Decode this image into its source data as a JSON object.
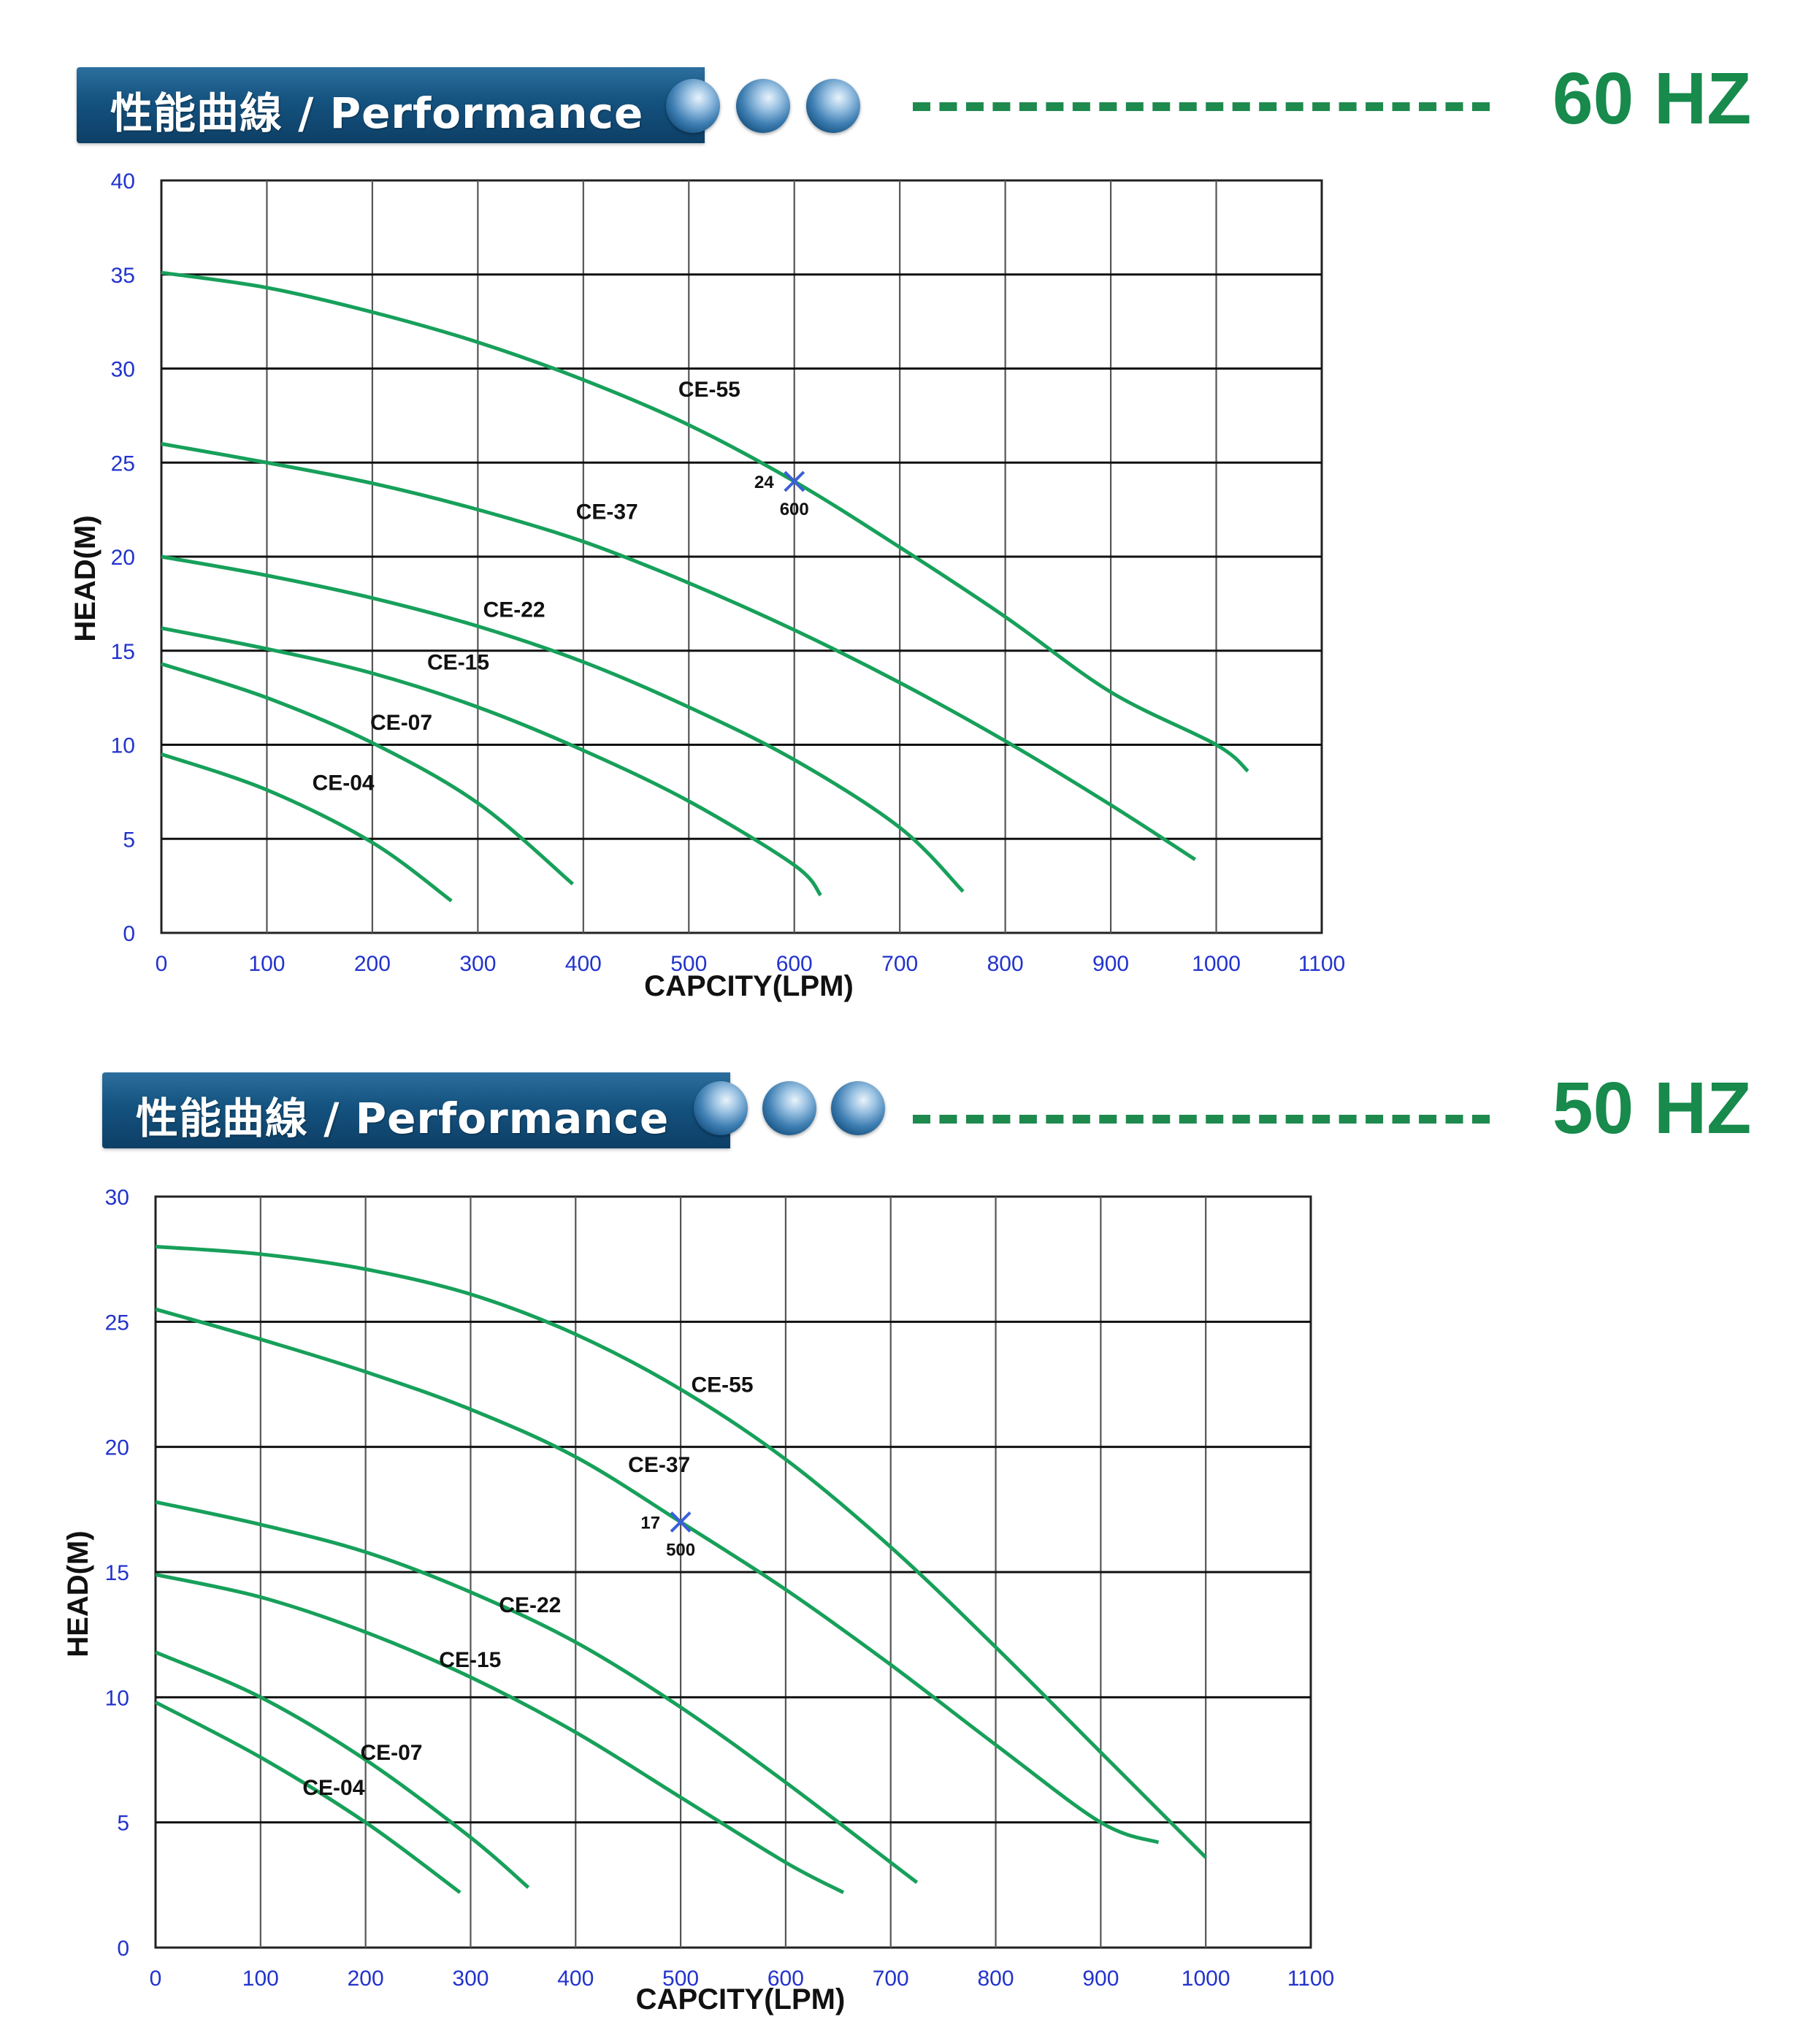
{
  "sections": [
    {
      "banner_label": "性能曲線 / Performance",
      "frequency": "60 HZ"
    },
    {
      "banner_label": "性能曲線 / Performance",
      "frequency": "50 HZ"
    }
  ],
  "chart_data": [
    {
      "type": "line",
      "title": "",
      "xlabel": "CAPCITY(LPM)",
      "ylabel": "HEAD(M)",
      "xlim": [
        0,
        1100
      ],
      "ylim": [
        0,
        40
      ],
      "xticks": [
        0,
        100,
        200,
        300,
        400,
        500,
        600,
        700,
        800,
        900,
        1000,
        1100
      ],
      "yticks": [
        0,
        5,
        10,
        15,
        20,
        25,
        30,
        35,
        40
      ],
      "grid": true,
      "series": [
        {
          "name": "CE-55",
          "color": "#17a05a",
          "label_at": [
            490,
            28.5
          ],
          "points": [
            [
              0,
              35.1
            ],
            [
              100,
              34.3
            ],
            [
              200,
              33.0
            ],
            [
              300,
              31.4
            ],
            [
              400,
              29.4
            ],
            [
              500,
              27.0
            ],
            [
              600,
              24.0
            ],
            [
              700,
              20.5
            ],
            [
              800,
              16.8
            ],
            [
              900,
              12.8
            ],
            [
              1000,
              10.0
            ],
            [
              1030,
              8.6
            ]
          ]
        },
        {
          "name": "CE-37",
          "color": "#17a05a",
          "label_at": [
            393,
            22.0
          ],
          "points": [
            [
              0,
              26.0
            ],
            [
              100,
              25.0
            ],
            [
              200,
              23.9
            ],
            [
              300,
              22.5
            ],
            [
              400,
              20.8
            ],
            [
              500,
              18.6
            ],
            [
              600,
              16.1
            ],
            [
              700,
              13.3
            ],
            [
              800,
              10.2
            ],
            [
              900,
              6.8
            ],
            [
              980,
              3.9
            ]
          ]
        },
        {
          "name": "CE-22",
          "color": "#17a05a",
          "label_at": [
            305,
            16.8
          ],
          "points": [
            [
              0,
              20.0
            ],
            [
              100,
              19.0
            ],
            [
              200,
              17.8
            ],
            [
              300,
              16.3
            ],
            [
              400,
              14.4
            ],
            [
              500,
              12.0
            ],
            [
              600,
              9.2
            ],
            [
              700,
              5.6
            ],
            [
              760,
              2.2
            ]
          ]
        },
        {
          "name": "CE-15",
          "color": "#17a05a",
          "label_at": [
            252,
            14.0
          ],
          "points": [
            [
              0,
              16.2
            ],
            [
              100,
              15.1
            ],
            [
              200,
              13.8
            ],
            [
              300,
              12.0
            ],
            [
              400,
              9.7
            ],
            [
              500,
              7.0
            ],
            [
              600,
              3.6
            ],
            [
              625,
              2.0
            ]
          ]
        },
        {
          "name": "CE-07",
          "color": "#17a05a",
          "label_at": [
            198,
            10.8
          ],
          "points": [
            [
              0,
              14.3
            ],
            [
              100,
              12.5
            ],
            [
              200,
              10.1
            ],
            [
              300,
              6.9
            ],
            [
              390,
              2.6
            ]
          ]
        },
        {
          "name": "CE-04",
          "color": "#17a05a",
          "label_at": [
            143,
            7.6
          ],
          "points": [
            [
              0,
              9.5
            ],
            [
              100,
              7.6
            ],
            [
              200,
              4.8
            ],
            [
              275,
              1.7
            ]
          ]
        }
      ],
      "annotations": [
        {
          "x": 600,
          "y": 24,
          "marker": "x",
          "color": "#3a5fd9",
          "text_y": "24",
          "text_x": "600"
        }
      ]
    },
    {
      "type": "line",
      "title": "",
      "xlabel": "CAPCITY(LPM)",
      "ylabel": "HEAD(M)",
      "xlim": [
        0,
        1100
      ],
      "ylim": [
        0,
        30
      ],
      "xticks": [
        0,
        100,
        200,
        300,
        400,
        500,
        600,
        700,
        800,
        900,
        1000,
        1100
      ],
      "yticks": [
        0,
        5,
        10,
        15,
        20,
        25,
        30
      ],
      "grid": true,
      "series": [
        {
          "name": "CE-55",
          "color": "#17a05a",
          "label_at": [
            510,
            22.2
          ],
          "points": [
            [
              0,
              28.0
            ],
            [
              100,
              27.7
            ],
            [
              200,
              27.1
            ],
            [
              300,
              26.1
            ],
            [
              400,
              24.5
            ],
            [
              500,
              22.3
            ],
            [
              600,
              19.5
            ],
            [
              700,
              16.0
            ],
            [
              800,
              12.0
            ],
            [
              900,
              7.8
            ],
            [
              1000,
              3.6
            ]
          ]
        },
        {
          "name": "CE-37",
          "color": "#17a05a",
          "label_at": [
            450,
            19.0
          ],
          "points": [
            [
              0,
              25.5
            ],
            [
              100,
              24.3
            ],
            [
              200,
              23.0
            ],
            [
              300,
              21.5
            ],
            [
              400,
              19.6
            ],
            [
              500,
              17.0
            ],
            [
              600,
              14.3
            ],
            [
              700,
              11.3
            ],
            [
              800,
              8.1
            ],
            [
              900,
              5.0
            ],
            [
              955,
              4.2
            ]
          ]
        },
        {
          "name": "CE-22",
          "color": "#17a05a",
          "label_at": [
            327,
            13.4
          ],
          "points": [
            [
              0,
              17.8
            ],
            [
              100,
              16.9
            ],
            [
              200,
              15.8
            ],
            [
              300,
              14.2
            ],
            [
              400,
              12.2
            ],
            [
              500,
              9.6
            ],
            [
              600,
              6.6
            ],
            [
              700,
              3.4
            ],
            [
              725,
              2.6
            ]
          ]
        },
        {
          "name": "CE-15",
          "color": "#17a05a",
          "label_at": [
            270,
            11.2
          ],
          "points": [
            [
              0,
              14.9
            ],
            [
              100,
              14.0
            ],
            [
              200,
              12.6
            ],
            [
              300,
              10.8
            ],
            [
              400,
              8.6
            ],
            [
              500,
              6.0
            ],
            [
              600,
              3.4
            ],
            [
              655,
              2.2
            ]
          ]
        },
        {
          "name": "CE-07",
          "color": "#17a05a",
          "label_at": [
            195,
            7.5
          ],
          "points": [
            [
              0,
              11.8
            ],
            [
              100,
              10.0
            ],
            [
              200,
              7.5
            ],
            [
              300,
              4.4
            ],
            [
              355,
              2.4
            ]
          ]
        },
        {
          "name": "CE-04",
          "color": "#17a05a",
          "label_at": [
            140,
            6.1
          ],
          "points": [
            [
              0,
              9.8
            ],
            [
              100,
              7.6
            ],
            [
              200,
              5.0
            ],
            [
              290,
              2.2
            ]
          ]
        }
      ],
      "annotations": [
        {
          "x": 500,
          "y": 17,
          "marker": "x",
          "color": "#3a5fd9",
          "text_y": "17",
          "text_x": "500"
        }
      ]
    }
  ]
}
